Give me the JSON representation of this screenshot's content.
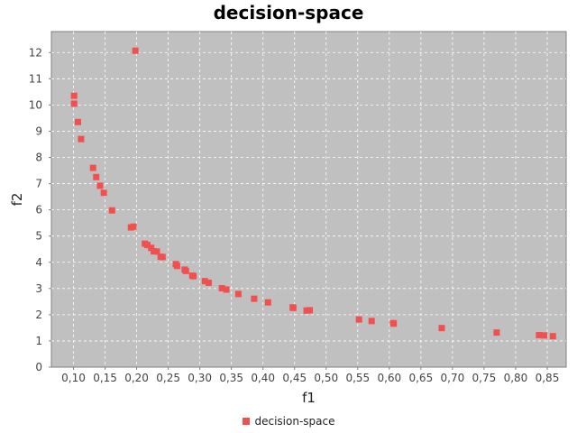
{
  "chart_data": {
    "type": "scatter",
    "title": "decision-space",
    "xlabel": "f1",
    "ylabel": "f2",
    "xlim": [
      0.065,
      0.88
    ],
    "ylim": [
      0,
      12.8
    ],
    "xticks": [
      0.1,
      0.15,
      0.2,
      0.25,
      0.3,
      0.35,
      0.4,
      0.45,
      0.5,
      0.55,
      0.6,
      0.65,
      0.7,
      0.75,
      0.8,
      0.85
    ],
    "xtick_labels": [
      "0,10",
      "0,15",
      "0,20",
      "0,25",
      "0,30",
      "0,35",
      "0,40",
      "0,45",
      "0,50",
      "0,55",
      "0,60",
      "0,65",
      "0,70",
      "0,75",
      "0,80",
      "0,85"
    ],
    "yticks": [
      0,
      1,
      2,
      3,
      4,
      5,
      6,
      7,
      8,
      9,
      10,
      11,
      12
    ],
    "ytick_labels": [
      "0",
      "1",
      "2",
      "3",
      "4",
      "5",
      "6",
      "7",
      "8",
      "9",
      "10",
      "11",
      "12"
    ],
    "grid": true,
    "legend_position": "bottom-center",
    "series": [
      {
        "name": "decision-space",
        "color": "#f05050",
        "points": [
          [
            0.101,
            10.35
          ],
          [
            0.101,
            10.05
          ],
          [
            0.107,
            9.35
          ],
          [
            0.112,
            8.7
          ],
          [
            0.198,
            12.07
          ],
          [
            0.131,
            7.6
          ],
          [
            0.136,
            7.25
          ],
          [
            0.142,
            6.92
          ],
          [
            0.148,
            6.65
          ],
          [
            0.161,
            5.98
          ],
          [
            0.191,
            5.33
          ],
          [
            0.195,
            5.36
          ],
          [
            0.213,
            4.71
          ],
          [
            0.217,
            4.66
          ],
          [
            0.223,
            4.55
          ],
          [
            0.227,
            4.42
          ],
          [
            0.232,
            4.41
          ],
          [
            0.238,
            4.21
          ],
          [
            0.241,
            4.2
          ],
          [
            0.262,
            3.93
          ],
          [
            0.264,
            3.86
          ],
          [
            0.276,
            3.72
          ],
          [
            0.278,
            3.67
          ],
          [
            0.288,
            3.49
          ],
          [
            0.29,
            3.47
          ],
          [
            0.308,
            3.28
          ],
          [
            0.314,
            3.22
          ],
          [
            0.335,
            3.01
          ],
          [
            0.342,
            2.96
          ],
          [
            0.361,
            2.79
          ],
          [
            0.386,
            2.61
          ],
          [
            0.408,
            2.47
          ],
          [
            0.447,
            2.28
          ],
          [
            0.448,
            2.26
          ],
          [
            0.469,
            2.16
          ],
          [
            0.474,
            2.17
          ],
          [
            0.552,
            1.82
          ],
          [
            0.572,
            1.76
          ],
          [
            0.606,
            1.68
          ],
          [
            0.607,
            1.66
          ],
          [
            0.683,
            1.49
          ],
          [
            0.77,
            1.32
          ],
          [
            0.837,
            1.22
          ],
          [
            0.845,
            1.21
          ],
          [
            0.859,
            1.18
          ]
        ]
      }
    ]
  }
}
